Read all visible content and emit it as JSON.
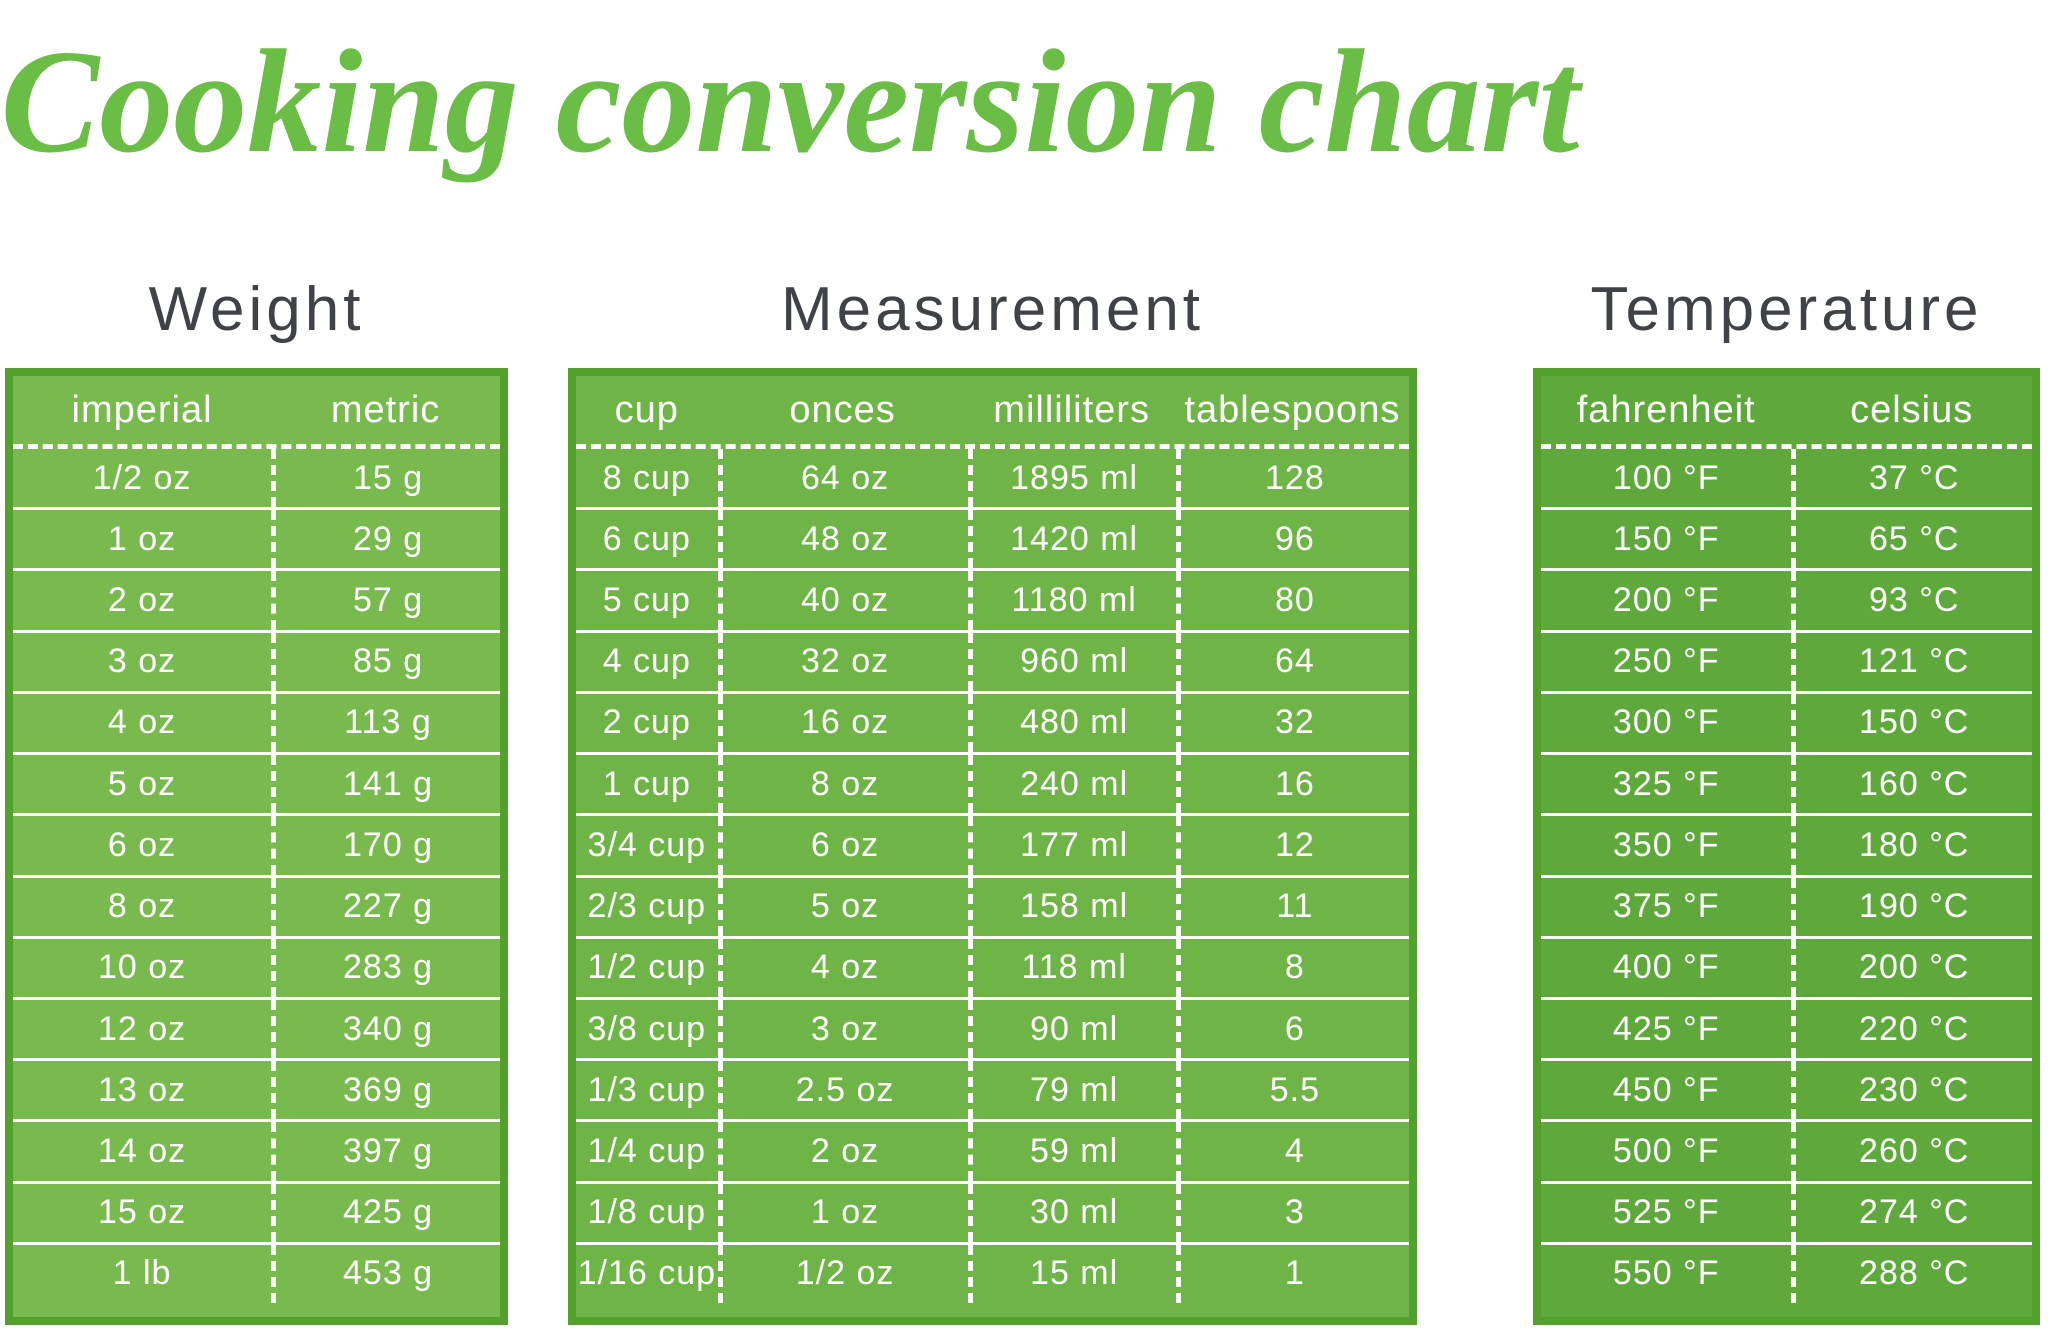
{
  "title": "Cooking conversion chart",
  "colors": {
    "title_green": "#6abd45",
    "heading_gray": "#3f4347",
    "table_border": "#53a02c",
    "table_fills": [
      "#79ba4e",
      "#6fb447",
      "#5fa93c"
    ],
    "table_text": "#ffffff"
  },
  "chart_data": [
    {
      "type": "table",
      "title": "Weight",
      "columns": [
        "imperial",
        "metric"
      ],
      "rows": [
        [
          "1/2 oz",
          "15 g"
        ],
        [
          "1 oz",
          "29 g"
        ],
        [
          "2 oz",
          "57 g"
        ],
        [
          "3 oz",
          "85 g"
        ],
        [
          "4 oz",
          "113 g"
        ],
        [
          "5 oz",
          "141 g"
        ],
        [
          "6 oz",
          "170 g"
        ],
        [
          "8 oz",
          "227 g"
        ],
        [
          "10 oz",
          "283 g"
        ],
        [
          "12 oz",
          "340 g"
        ],
        [
          "13 oz",
          "369 g"
        ],
        [
          "14 oz",
          "397 g"
        ],
        [
          "15 oz",
          "425 g"
        ],
        [
          "1 lb",
          "453 g"
        ]
      ]
    },
    {
      "type": "table",
      "title": "Measurement",
      "columns": [
        "cup",
        "onces",
        "milliliters",
        "tablespoons"
      ],
      "rows": [
        [
          "8 cup",
          "64 oz",
          "1895 ml",
          "128"
        ],
        [
          "6 cup",
          "48 oz",
          "1420 ml",
          "96"
        ],
        [
          "5 cup",
          "40 oz",
          "1180 ml",
          "80"
        ],
        [
          "4 cup",
          "32 oz",
          "960 ml",
          "64"
        ],
        [
          "2 cup",
          "16 oz",
          "480 ml",
          "32"
        ],
        [
          "1 cup",
          "8 oz",
          "240 ml",
          "16"
        ],
        [
          "3/4 cup",
          "6 oz",
          "177 ml",
          "12"
        ],
        [
          "2/3 cup",
          "5 oz",
          "158 ml",
          "11"
        ],
        [
          "1/2 cup",
          "4 oz",
          "118 ml",
          "8"
        ],
        [
          "3/8 cup",
          "3 oz",
          "90 ml",
          "6"
        ],
        [
          "1/3 cup",
          "2.5 oz",
          "79 ml",
          "5.5"
        ],
        [
          "1/4 cup",
          "2 oz",
          "59 ml",
          "4"
        ],
        [
          "1/8 cup",
          "1 oz",
          "30 ml",
          "3"
        ],
        [
          "1/16 cup",
          "1/2 oz",
          "15 ml",
          "1"
        ]
      ]
    },
    {
      "type": "table",
      "title": "Temperature",
      "columns": [
        "fahrenheit",
        "celsius"
      ],
      "rows": [
        [
          "100 °F",
          "37 °C"
        ],
        [
          "150 °F",
          "65 °C"
        ],
        [
          "200 °F",
          "93 °C"
        ],
        [
          "250 °F",
          "121 °C"
        ],
        [
          "300 °F",
          "150 °C"
        ],
        [
          "325 °F",
          "160 °C"
        ],
        [
          "350 °F",
          "180 °C"
        ],
        [
          "375 °F",
          "190 °C"
        ],
        [
          "400 °F",
          "200 °C"
        ],
        [
          "425 °F",
          "220 °C"
        ],
        [
          "450 °F",
          "230 °C"
        ],
        [
          "500 °F",
          "260 °C"
        ],
        [
          "525 °F",
          "274 °C"
        ],
        [
          "550 °F",
          "288 °C"
        ]
      ]
    }
  ]
}
